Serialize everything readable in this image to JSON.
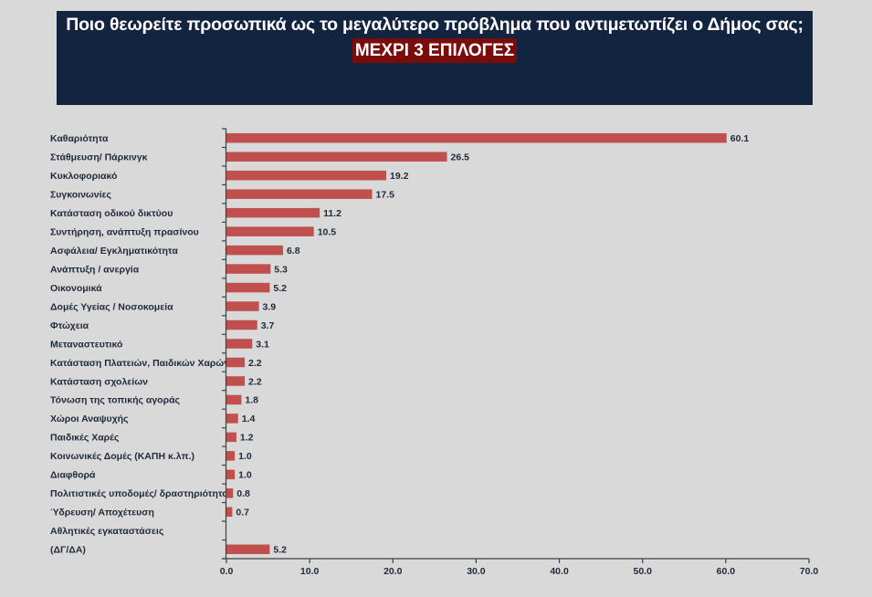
{
  "header": {
    "question": "Ποιο θεωρείτε προσωπικά ως το μεγαλύτερο πρόβλημα που αντιμετωπίζει ο Δήμος σας;",
    "subtitle": "ΜΕΧΡΙ 3 ΕΠΙΛΟΓΕΣ"
  },
  "colors": {
    "header_bg": "#12243f",
    "highlight_bg": "#7a0c0c",
    "bar": "#c0504d",
    "background": "#d9d9d9"
  },
  "chart_data": {
    "type": "bar",
    "orientation": "horizontal",
    "title": "Ποιο θεωρείτε προσωπικά ως το μεγαλύτερο πρόβλημα που αντιμετωπίζει ο Δήμος σας;",
    "subtitle": "ΜΕΧΡΙ 3 ΕΠΙΛΟΓΕΣ",
    "xlabel": "",
    "ylabel": "",
    "xlim": [
      0,
      70
    ],
    "x_ticks": [
      "0.0",
      "10.0",
      "20.0",
      "30.0",
      "40.0",
      "50.0",
      "60.0",
      "70.0"
    ],
    "grid": false,
    "legend": "none",
    "categories": [
      "Καθαριότητα",
      "Στάθμευση/ Πάρκινγκ",
      "Κυκλοφοριακό",
      "Συγκοινωνίες",
      "Κατάσταση οδικού δικτύου",
      "Συντήρηση, ανάπτυξη πρασίνου",
      "Ασφάλεια/ Εγκληματικότητα",
      "Ανάπτυξη / ανεργία",
      "Οικονομικά",
      "Δομές Υγείας / Νοσοκομεία",
      "Φτώχεια",
      "Μεταναστευτικό",
      "Κατάσταση Πλατειών, Παιδικών Χαρών",
      "Κατάσταση σχολείων",
      "Τόνωση της τοπικής αγοράς",
      "Χώροι Αναψυχής",
      "Παιδικές Χαρές",
      "Κοινωνικές Δομές (ΚΑΠΗ κ.λπ.)",
      "Διαφθορά",
      "Πολιτιστικές υποδομές/ δραστηριότητα",
      "Ύδρευση/ Αποχέτευση",
      "Αθλητικές εγκαταστάσεις",
      "(ΔΓ/ΔΑ)"
    ],
    "values": [
      60.1,
      26.5,
      19.2,
      17.5,
      11.2,
      10.5,
      6.8,
      5.3,
      5.2,
      3.9,
      3.7,
      3.1,
      2.2,
      2.2,
      1.8,
      1.4,
      1.2,
      1.0,
      1.0,
      0.8,
      0.7,
      null,
      5.2
    ],
    "labels": [
      "60.1",
      "26.5",
      "19.2",
      "17.5",
      "11.2",
      "10.5",
      "6.8",
      "5.3",
      "5.2",
      "3.9",
      "3.7",
      "3.1",
      "2.2",
      "2.2",
      "1.8",
      "1.4",
      "1.2",
      "1.0",
      "1.0",
      "0.8",
      "0.7",
      "",
      "5.2"
    ]
  }
}
